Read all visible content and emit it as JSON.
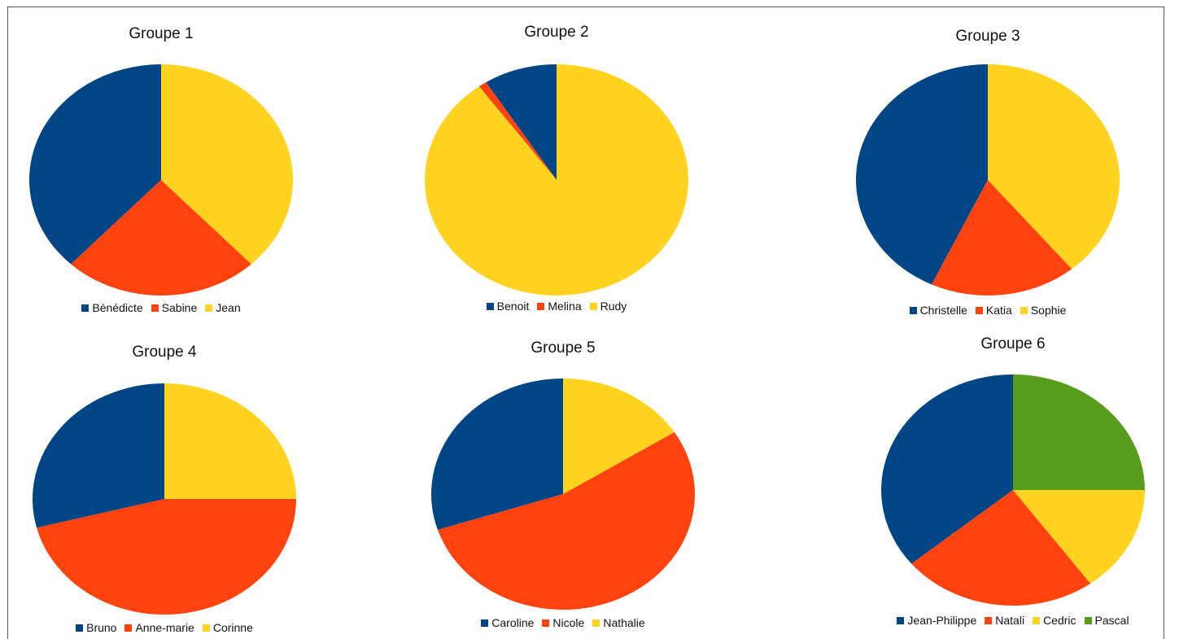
{
  "chart_data": [
    {
      "type": "pie",
      "title": "Groupe 1",
      "labels": [
        "Bénédicte",
        "Sabine",
        "Jean"
      ],
      "values": [
        38,
        24,
        38
      ],
      "colors": [
        "#004586",
        "#ff420e",
        "#ffd320"
      ],
      "legend": "bottom"
    },
    {
      "type": "pie",
      "title": "Groupe 2",
      "labels": [
        "Benoit",
        "Melina",
        "Rudy"
      ],
      "values": [
        9,
        1,
        90
      ],
      "colors": [
        "#004586",
        "#ff420e",
        "#ffd320"
      ],
      "legend": "bottom"
    },
    {
      "type": "pie",
      "title": "Groupe 3",
      "labels": [
        "Christelle",
        "Katia",
        "Sophie"
      ],
      "values": [
        43,
        18,
        39
      ],
      "colors": [
        "#004586",
        "#ff420e",
        "#ffd320"
      ],
      "legend": "bottom"
    },
    {
      "type": "pie",
      "title": "Groupe 4",
      "labels": [
        "Bruno",
        "Anne-marie",
        "Corinne"
      ],
      "values": [
        29,
        46,
        25
      ],
      "colors": [
        "#004586",
        "#ff420e",
        "#ffd320"
      ],
      "legend": "bottom"
    },
    {
      "type": "pie",
      "title": "Groupe 5",
      "labels": [
        "Caroline",
        "Nicole",
        "Nathalie"
      ],
      "values": [
        30,
        54,
        16
      ],
      "colors": [
        "#004586",
        "#ff420e",
        "#ffd320"
      ],
      "legend": "bottom"
    },
    {
      "type": "pie",
      "title": "Groupe 6",
      "labels": [
        "Jean-Philippe",
        "Natali",
        "Cedric",
        "Pascal"
      ],
      "values": [
        36,
        24,
        15,
        25
      ],
      "colors": [
        "#004586",
        "#ff420e",
        "#ffd320",
        "#579d1c"
      ],
      "legend": "bottom"
    }
  ]
}
